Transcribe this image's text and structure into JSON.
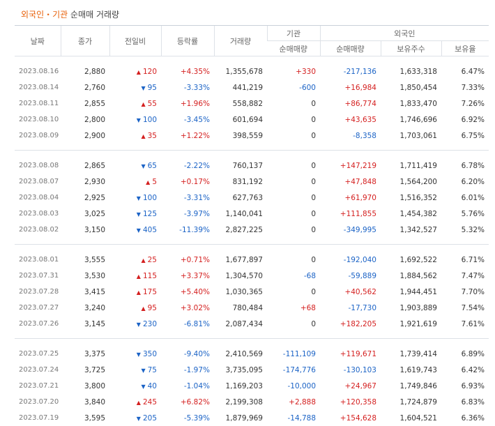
{
  "title": {
    "part1": "외국인・기관",
    "part2": "순매매 거래량"
  },
  "headers": {
    "date": "날짜",
    "close": "종가",
    "change": "전일비",
    "rate": "등락률",
    "volume": "거래량",
    "inst": "기관",
    "inst_net": "순매매량",
    "foreign": "외국인",
    "foreign_net": "순매매량",
    "foreign_hold": "보유주수",
    "foreign_ratio": "보유율"
  },
  "rows": [
    {
      "date": "2023.08.16",
      "close": "2,880",
      "dir": "up",
      "change": "120",
      "rate": "+4.35%",
      "volume": "1,355,678",
      "inst": "+330",
      "foreign": "-217,136",
      "hold": "1,633,318",
      "ratio": "6.47%"
    },
    {
      "date": "2023.08.14",
      "close": "2,760",
      "dir": "down",
      "change": "95",
      "rate": "-3.33%",
      "volume": "441,219",
      "inst": "-600",
      "foreign": "+16,984",
      "hold": "1,850,454",
      "ratio": "7.33%"
    },
    {
      "date": "2023.08.11",
      "close": "2,855",
      "dir": "up",
      "change": "55",
      "rate": "+1.96%",
      "volume": "558,882",
      "inst": "0",
      "foreign": "+86,774",
      "hold": "1,833,470",
      "ratio": "7.26%"
    },
    {
      "date": "2023.08.10",
      "close": "2,800",
      "dir": "down",
      "change": "100",
      "rate": "-3.45%",
      "volume": "601,694",
      "inst": "0",
      "foreign": "+43,635",
      "hold": "1,746,696",
      "ratio": "6.92%"
    },
    {
      "date": "2023.08.09",
      "close": "2,900",
      "dir": "up",
      "change": "35",
      "rate": "+1.22%",
      "volume": "398,559",
      "inst": "0",
      "foreign": "-8,358",
      "hold": "1,703,061",
      "ratio": "6.75%"
    },
    {
      "date": "2023.08.08",
      "close": "2,865",
      "dir": "down",
      "change": "65",
      "rate": "-2.22%",
      "volume": "760,137",
      "inst": "0",
      "foreign": "+147,219",
      "hold": "1,711,419",
      "ratio": "6.78%"
    },
    {
      "date": "2023.08.07",
      "close": "2,930",
      "dir": "up",
      "change": "5",
      "rate": "+0.17%",
      "volume": "831,192",
      "inst": "0",
      "foreign": "+47,848",
      "hold": "1,564,200",
      "ratio": "6.20%"
    },
    {
      "date": "2023.08.04",
      "close": "2,925",
      "dir": "down",
      "change": "100",
      "rate": "-3.31%",
      "volume": "627,763",
      "inst": "0",
      "foreign": "+61,970",
      "hold": "1,516,352",
      "ratio": "6.01%"
    },
    {
      "date": "2023.08.03",
      "close": "3,025",
      "dir": "down",
      "change": "125",
      "rate": "-3.97%",
      "volume": "1,140,041",
      "inst": "0",
      "foreign": "+111,855",
      "hold": "1,454,382",
      "ratio": "5.76%"
    },
    {
      "date": "2023.08.02",
      "close": "3,150",
      "dir": "down",
      "change": "405",
      "rate": "-11.39%",
      "volume": "2,827,225",
      "inst": "0",
      "foreign": "-349,995",
      "hold": "1,342,527",
      "ratio": "5.32%"
    },
    {
      "date": "2023.08.01",
      "close": "3,555",
      "dir": "up",
      "change": "25",
      "rate": "+0.71%",
      "volume": "1,677,897",
      "inst": "0",
      "foreign": "-192,040",
      "hold": "1,692,522",
      "ratio": "6.71%"
    },
    {
      "date": "2023.07.31",
      "close": "3,530",
      "dir": "up",
      "change": "115",
      "rate": "+3.37%",
      "volume": "1,304,570",
      "inst": "-68",
      "foreign": "-59,889",
      "hold": "1,884,562",
      "ratio": "7.47%"
    },
    {
      "date": "2023.07.28",
      "close": "3,415",
      "dir": "up",
      "change": "175",
      "rate": "+5.40%",
      "volume": "1,030,365",
      "inst": "0",
      "foreign": "+40,562",
      "hold": "1,944,451",
      "ratio": "7.70%"
    },
    {
      "date": "2023.07.27",
      "close": "3,240",
      "dir": "up",
      "change": "95",
      "rate": "+3.02%",
      "volume": "780,484",
      "inst": "+68",
      "foreign": "-17,730",
      "hold": "1,903,889",
      "ratio": "7.54%"
    },
    {
      "date": "2023.07.26",
      "close": "3,145",
      "dir": "down",
      "change": "230",
      "rate": "-6.81%",
      "volume": "2,087,434",
      "inst": "0",
      "foreign": "+182,205",
      "hold": "1,921,619",
      "ratio": "7.61%"
    },
    {
      "date": "2023.07.25",
      "close": "3,375",
      "dir": "down",
      "change": "350",
      "rate": "-9.40%",
      "volume": "2,410,569",
      "inst": "-111,109",
      "foreign": "+119,671",
      "hold": "1,739,414",
      "ratio": "6.89%"
    },
    {
      "date": "2023.07.24",
      "close": "3,725",
      "dir": "down",
      "change": "75",
      "rate": "-1.97%",
      "volume": "3,735,095",
      "inst": "-174,776",
      "foreign": "-130,103",
      "hold": "1,619,743",
      "ratio": "6.42%"
    },
    {
      "date": "2023.07.21",
      "close": "3,800",
      "dir": "down",
      "change": "40",
      "rate": "-1.04%",
      "volume": "1,169,203",
      "inst": "-10,000",
      "foreign": "+24,967",
      "hold": "1,749,846",
      "ratio": "6.93%"
    },
    {
      "date": "2023.07.20",
      "close": "3,840",
      "dir": "up",
      "change": "245",
      "rate": "+6.82%",
      "volume": "2,199,308",
      "inst": "+2,888",
      "foreign": "+120,358",
      "hold": "1,724,879",
      "ratio": "6.83%"
    },
    {
      "date": "2023.07.19",
      "close": "3,595",
      "dir": "down",
      "change": "205",
      "rate": "-5.39%",
      "volume": "1,879,969",
      "inst": "-14,788",
      "foreign": "+154,628",
      "hold": "1,604,521",
      "ratio": "6.36%"
    }
  ],
  "colors": {
    "up": "#d41f1f",
    "down": "#1b63c6",
    "accent": "#e8620c"
  }
}
